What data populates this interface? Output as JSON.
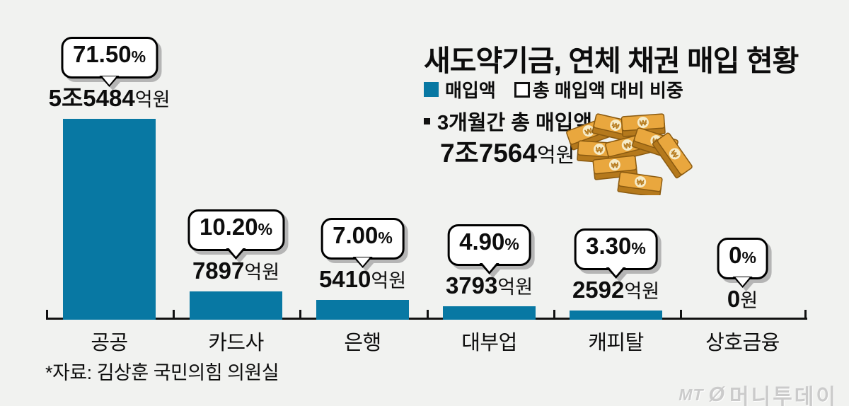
{
  "chart_data": {
    "type": "bar",
    "title": "새도약기금, 연체 채권 매입 현황",
    "legend": [
      {
        "label": "매입액",
        "swatch": "filled-square"
      },
      {
        "label": "총 매입액 대비 비중",
        "swatch": "outline-square"
      }
    ],
    "legend_position": "top-right",
    "note": "3개월간 총 매입액",
    "total": {
      "amount": "7조7564",
      "suffix": "억원"
    },
    "categories": [
      "공공",
      "카드사",
      "은행",
      "대부업",
      "캐피탈",
      "상호금융"
    ],
    "items": [
      {
        "category": "공공",
        "percent_value": 71.5,
        "percent": "71.50",
        "percent_suffix": "%",
        "amount": "5조5484",
        "amount_suffix": "억원"
      },
      {
        "category": "카드사",
        "percent_value": 10.2,
        "percent": "10.20",
        "percent_suffix": "%",
        "amount": "7897",
        "amount_suffix": "억원"
      },
      {
        "category": "은행",
        "percent_value": 7.0,
        "percent": "7.00",
        "percent_suffix": "%",
        "amount": "5410",
        "amount_suffix": "억원"
      },
      {
        "category": "대부업",
        "percent_value": 4.9,
        "percent": "4.90",
        "percent_suffix": "%",
        "amount": "3793",
        "amount_suffix": "억원"
      },
      {
        "category": "캐피탈",
        "percent_value": 3.3,
        "percent": "3.30",
        "percent_suffix": "%",
        "amount": "2592",
        "amount_suffix": "억원"
      },
      {
        "category": "상호금융",
        "percent_value": 0,
        "percent": "0",
        "percent_suffix": "%",
        "amount": "0",
        "amount_suffix": "원"
      }
    ],
    "xlabel": "",
    "ylabel": "",
    "ylim": [
      0,
      75
    ],
    "grid": false,
    "bar_color": "#0878a3"
  },
  "source": {
    "text": "*자료: 김상훈 국민의힘 의원실"
  },
  "logo": {
    "mt": "MT",
    "symbol": "Ø",
    "name": "머니투데이"
  },
  "colors": {
    "background": "#f1f2f0",
    "bar": "#0878a3",
    "bubble_shadow": "#b5b5b5",
    "gold_top": "#e9a73e",
    "gold_side": "#b5791c",
    "text": "#0d0d0d",
    "logo": "#cbcbcb"
  }
}
